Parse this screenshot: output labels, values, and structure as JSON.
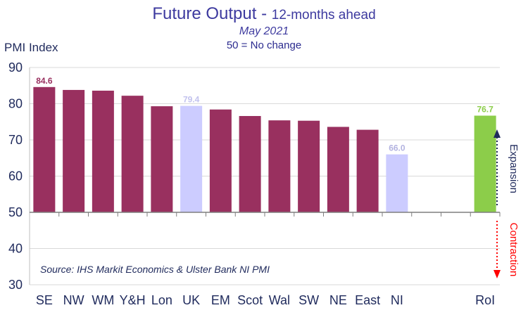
{
  "title": {
    "main": "Future Output - ",
    "main_suffix": "12-months ahead",
    "date": "May 2021",
    "note": "50 = No change"
  },
  "chart_data": {
    "type": "bar",
    "title": "Future Output - 12-months ahead",
    "subtitle": "May 2021",
    "note": "50 = No change",
    "ylabel": "PMI Index",
    "xlabel": "",
    "ylim": [
      30,
      90
    ],
    "yticks": [
      30,
      40,
      50,
      60,
      70,
      80,
      90
    ],
    "baseline": 50,
    "grid": "horizontal",
    "categories": [
      "SE",
      "NW",
      "WM",
      "Y&H",
      "Lon",
      "UK",
      "EM",
      "Scot",
      "Wal",
      "SW",
      "NE",
      "East",
      "NI",
      "",
      "",
      "RoI"
    ],
    "values": [
      84.6,
      83.8,
      83.6,
      82.2,
      79.3,
      79.4,
      78.4,
      76.6,
      75.4,
      75.3,
      73.6,
      72.8,
      66.0,
      null,
      null,
      76.7
    ],
    "colors": [
      "#99305f",
      "#99305f",
      "#99305f",
      "#99305f",
      "#99305f",
      "#ccccff",
      "#99305f",
      "#99305f",
      "#99305f",
      "#99305f",
      "#99305f",
      "#99305f",
      "#ccccff",
      "#99305f",
      "#99305f",
      "#8ccd4a"
    ],
    "data_labels": [
      {
        "index": 0,
        "text": "84.6",
        "color": "#99305f"
      },
      {
        "index": 5,
        "text": "79.4",
        "color": "#c2c2ee"
      },
      {
        "index": 12,
        "text": "66.0",
        "color": "#b3b3e0"
      },
      {
        "index": 15,
        "text": "76.7",
        "color": "#8ccd4a"
      }
    ],
    "source": "Source: IHS Markit Economics & Ulster Bank NI PMI",
    "annotations": {
      "expansion": {
        "text": "Expansion",
        "color": "#1f2a5c"
      },
      "contraction": {
        "text": "Contraction",
        "color": "#ff0000"
      }
    }
  }
}
